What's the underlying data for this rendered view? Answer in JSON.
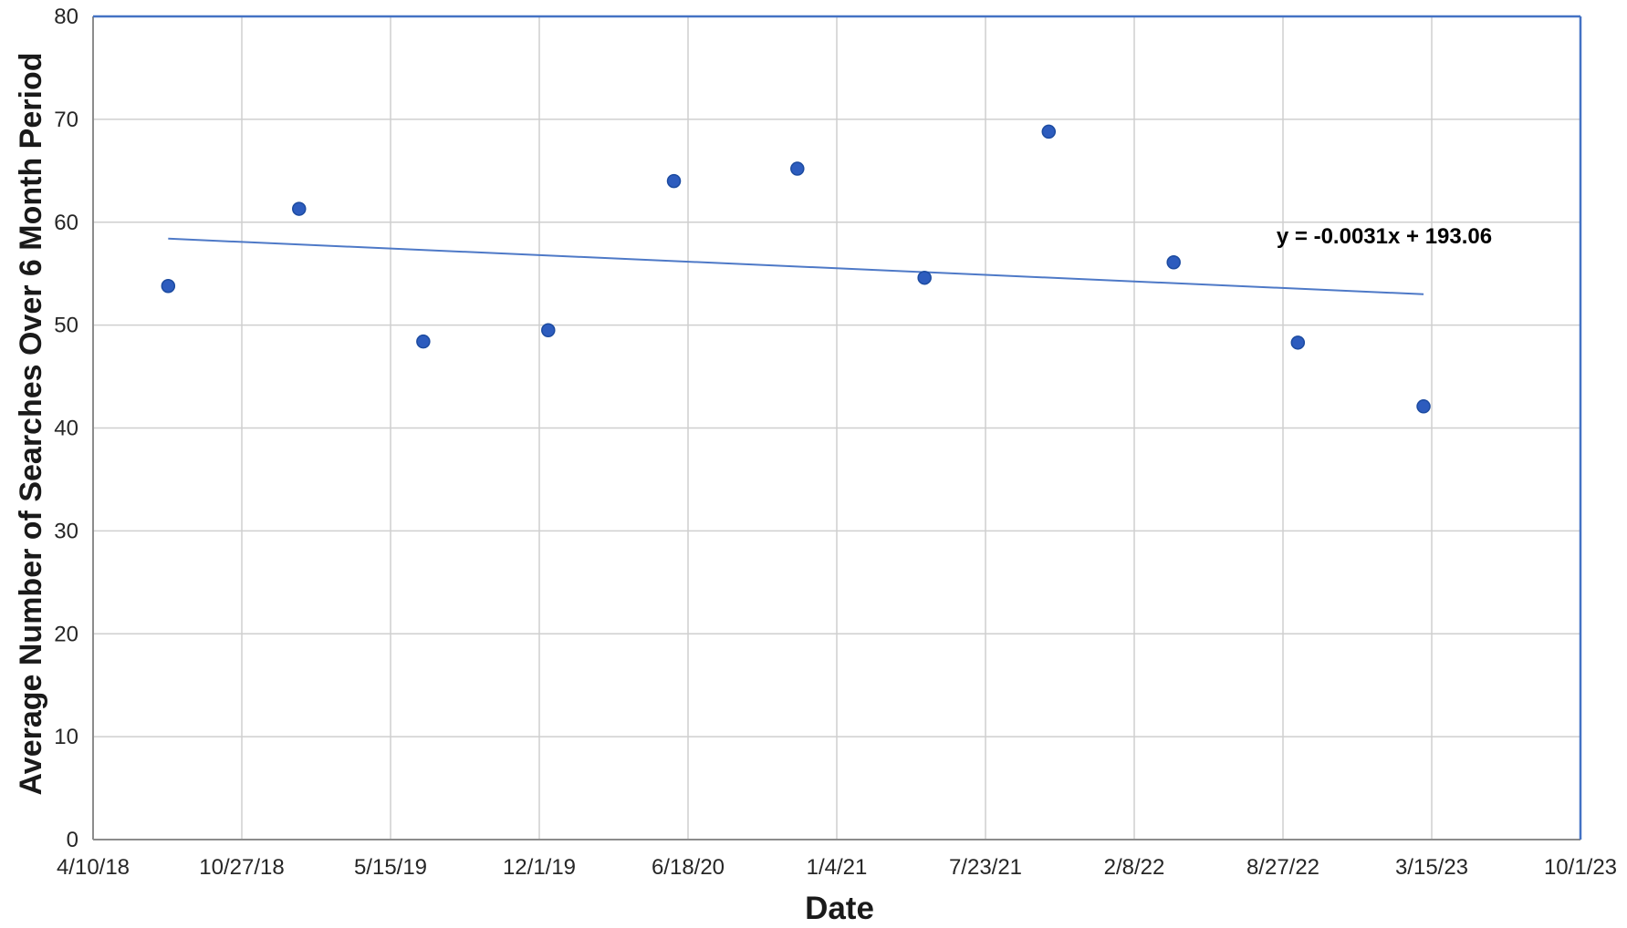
{
  "chart_data": {
    "type": "scatter",
    "title": "",
    "xlabel": "Date",
    "ylabel": "Average Number of Searches Over 6 Month Period",
    "x_tick_labels": [
      "4/10/18",
      "10/27/18",
      "5/15/19",
      "12/1/19",
      "6/18/20",
      "1/4/21",
      "7/23/21",
      "2/8/22",
      "8/27/22",
      "3/15/23",
      "10/1/23"
    ],
    "x_tick_interval_days": 200,
    "x_axis_days_span": 2000,
    "y_ticks": [
      0,
      10,
      20,
      30,
      40,
      50,
      60,
      70,
      80
    ],
    "ylim": [
      0,
      80
    ],
    "grid": true,
    "legend": "none",
    "points": [
      {
        "date": "7/20/18",
        "days": 101,
        "value": 53.8
      },
      {
        "date": "1/12/19",
        "days": 277,
        "value": 61.3
      },
      {
        "date": "6/28/19",
        "days": 444,
        "value": 48.4
      },
      {
        "date": "12/13/19",
        "days": 612,
        "value": 49.5
      },
      {
        "date": "5/30/20",
        "days": 781,
        "value": 64.0
      },
      {
        "date": "11/12/20",
        "days": 947,
        "value": 65.2
      },
      {
        "date": "5/2/21",
        "days": 1118,
        "value": 54.6
      },
      {
        "date": "10/16/21",
        "days": 1285,
        "value": 68.8
      },
      {
        "date": "4/2/22",
        "days": 1453,
        "value": 56.1
      },
      {
        "date": "9/16/22",
        "days": 1620,
        "value": 48.3
      },
      {
        "date": "3/4/23",
        "days": 1789,
        "value": 42.1
      }
    ],
    "trendline": {
      "equation": "y = -0.0031x + 193.06",
      "start": {
        "days": 101,
        "value": 58.4
      },
      "end": {
        "days": 1789,
        "value": 53.0
      }
    },
    "colors": {
      "point": "#2d5cbe",
      "point_edge": "#1c4ba0",
      "trend": "#4472c4",
      "plot_border": "#4472c4",
      "axis_line": "#8c8c8c",
      "gridline": "#cfcfcf",
      "text": "#262626"
    }
  }
}
